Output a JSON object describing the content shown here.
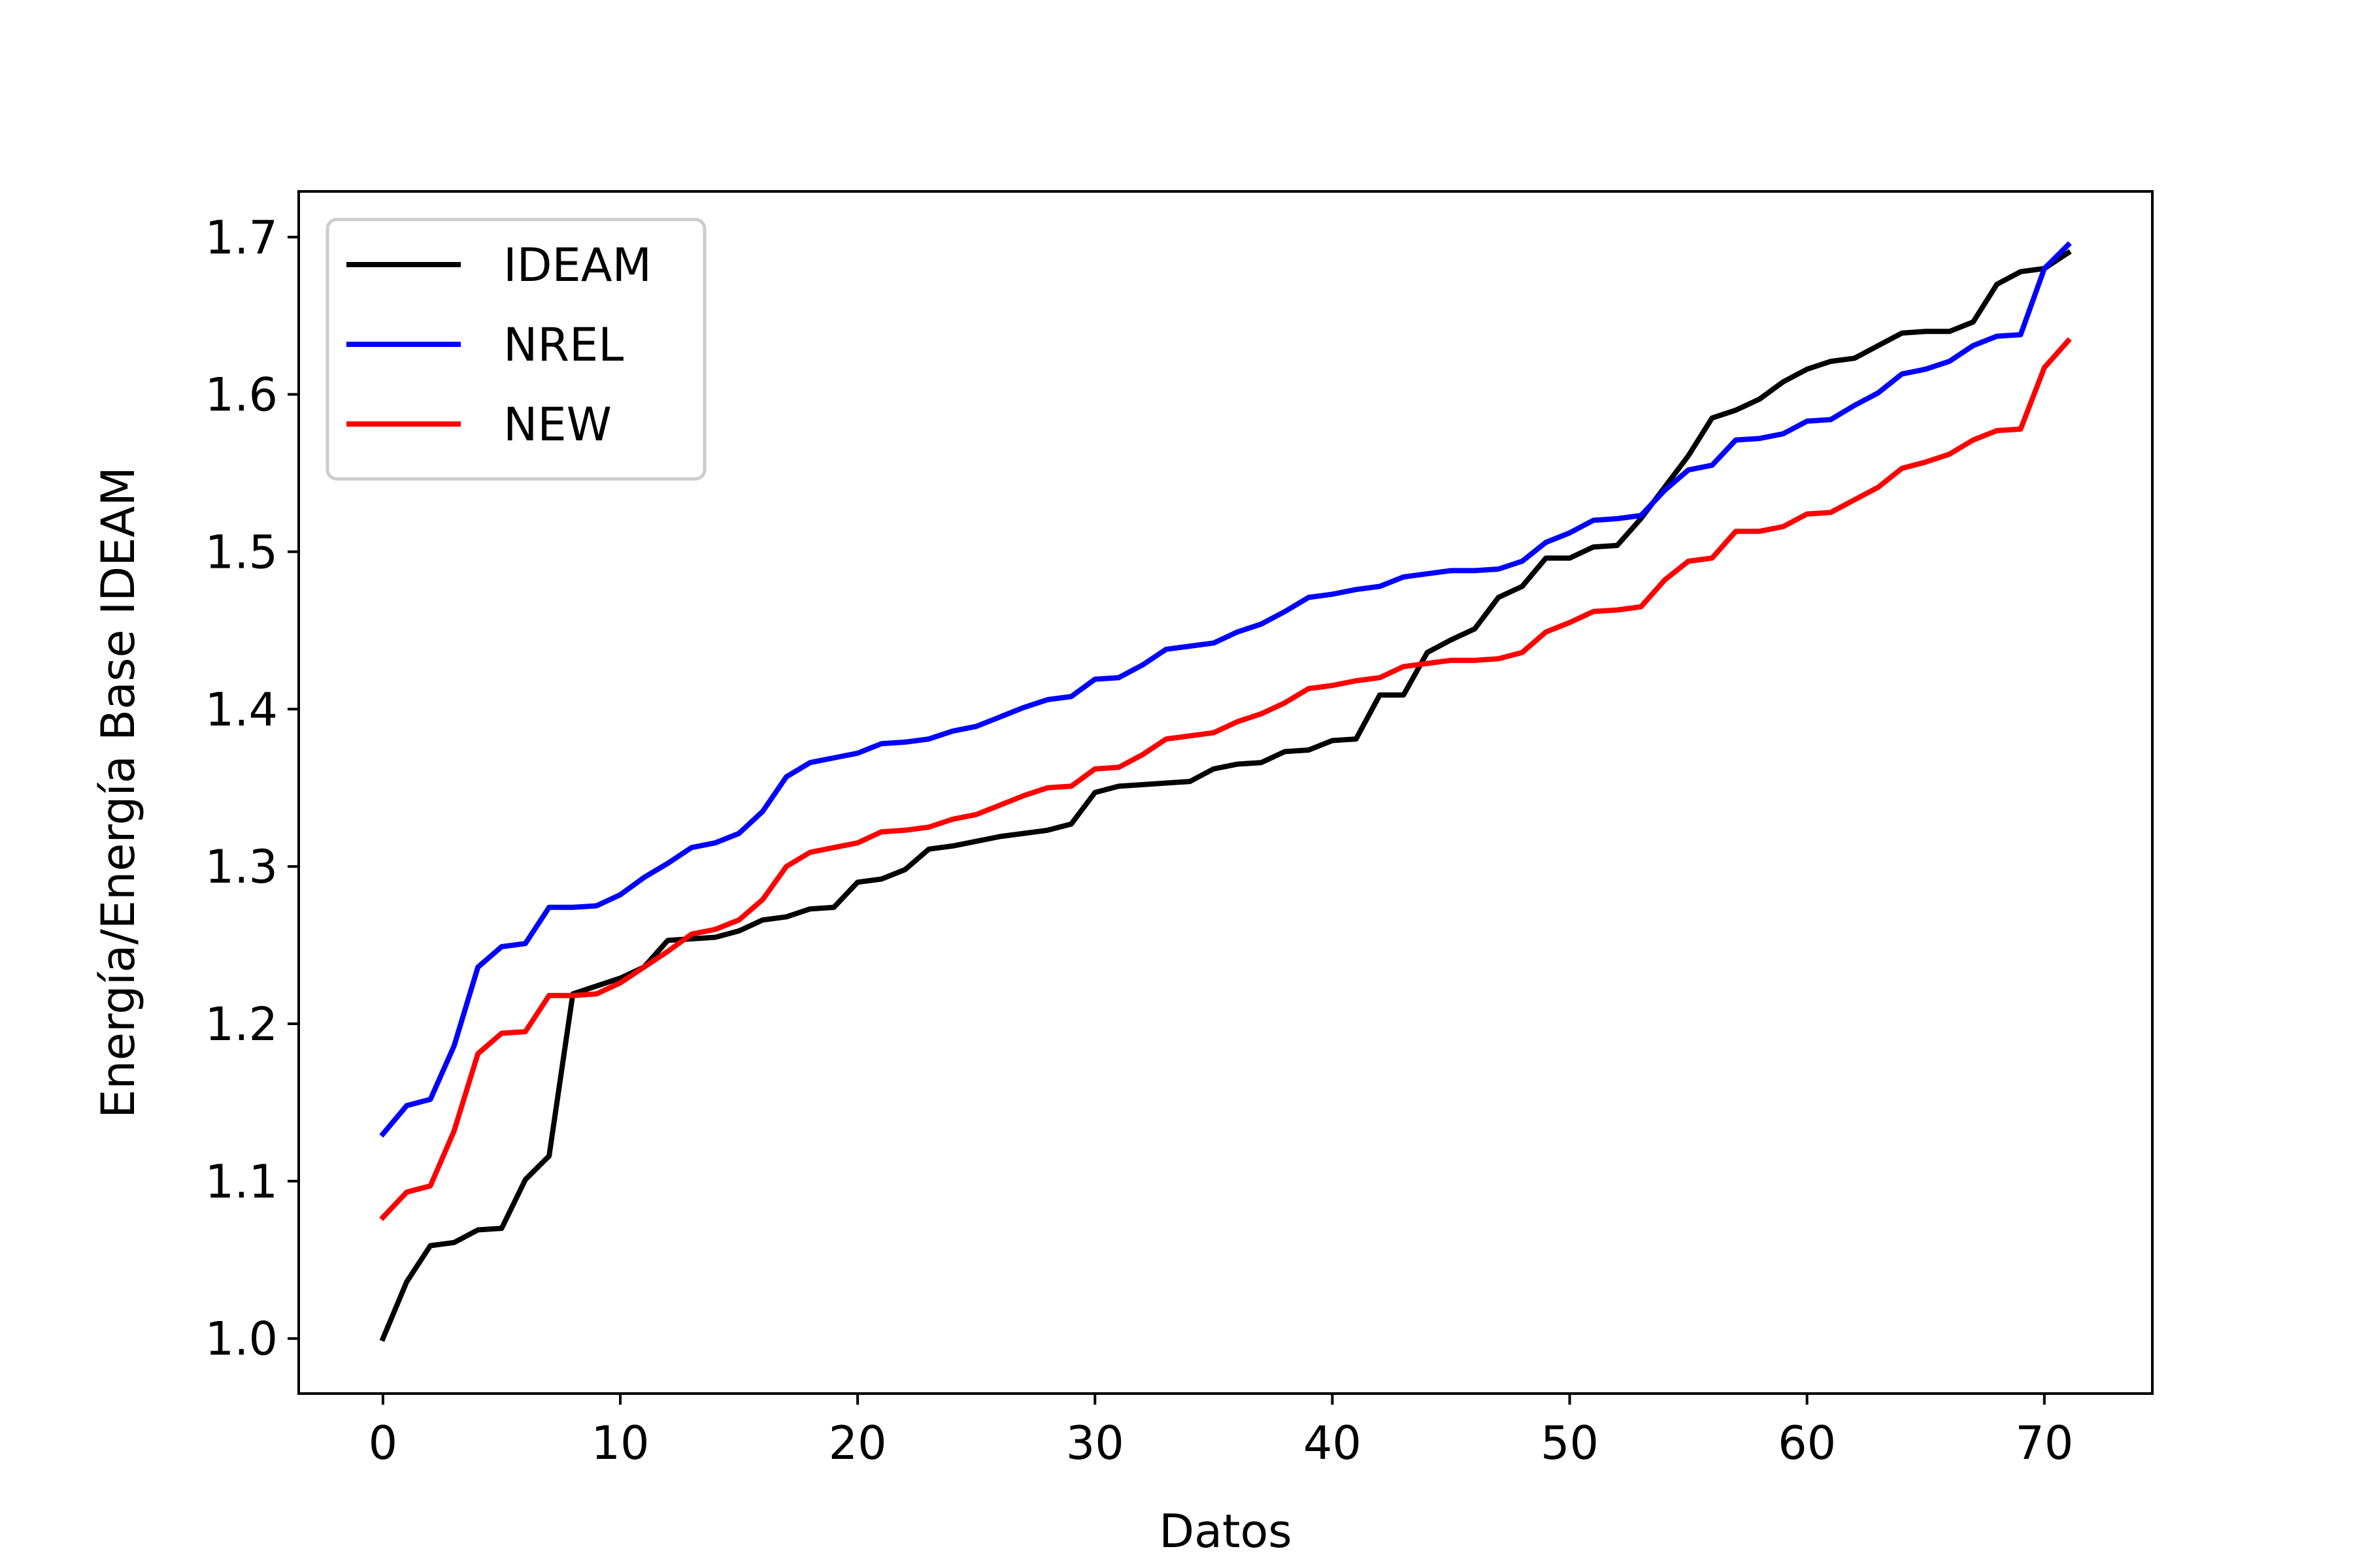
{
  "chart_data": {
    "type": "line",
    "title": "",
    "xlabel": "Datos",
    "ylabel": "Energía/Energía Base IDEAM",
    "xlim": [
      -3.55,
      74.55
    ],
    "ylim": [
      0.965,
      1.729
    ],
    "xticks": [
      0,
      10,
      20,
      30,
      40,
      50,
      60,
      70
    ],
    "yticks": [
      1.0,
      1.1,
      1.2,
      1.3,
      1.4,
      1.5,
      1.6,
      1.7
    ],
    "xtick_labels": [
      "0",
      "10",
      "20",
      "30",
      "40",
      "50",
      "60",
      "70"
    ],
    "ytick_labels": [
      "1.0",
      "1.1",
      "1.2",
      "1.3",
      "1.4",
      "1.5",
      "1.6",
      "1.7"
    ],
    "grid": false,
    "legend_position": "top-left",
    "series": [
      {
        "name": "IDEAM",
        "color": "#000000",
        "x": [
          0,
          1,
          2,
          3,
          4,
          5,
          6,
          7,
          8,
          9,
          10,
          11,
          12,
          13,
          14,
          15,
          16,
          17,
          18,
          19,
          20,
          21,
          22,
          23,
          24,
          25,
          26,
          27,
          28,
          29,
          30,
          31,
          32,
          33,
          34,
          35,
          36,
          37,
          38,
          39,
          40,
          41,
          42,
          43,
          44,
          45,
          46,
          47,
          48,
          49,
          50,
          51,
          52,
          53,
          54,
          55,
          56,
          57,
          58,
          59,
          60,
          61,
          62,
          63,
          64,
          65,
          66,
          67,
          68,
          69,
          70,
          71
        ],
        "values": [
          1.0,
          1.036,
          1.059,
          1.061,
          1.069,
          1.07,
          1.101,
          1.116,
          1.219,
          1.224,
          1.229,
          1.236,
          1.253,
          1.254,
          1.255,
          1.259,
          1.266,
          1.268,
          1.273,
          1.274,
          1.29,
          1.292,
          1.298,
          1.311,
          1.313,
          1.316,
          1.319,
          1.321,
          1.323,
          1.327,
          1.347,
          1.351,
          1.352,
          1.353,
          1.354,
          1.362,
          1.365,
          1.366,
          1.373,
          1.374,
          1.38,
          1.381,
          1.409,
          1.409,
          1.436,
          1.444,
          1.451,
          1.471,
          1.478,
          1.496,
          1.496,
          1.503,
          1.504,
          1.521,
          1.541,
          1.561,
          1.585,
          1.59,
          1.597,
          1.608,
          1.616,
          1.621,
          1.623,
          1.631,
          1.639,
          1.64,
          1.64,
          1.646,
          1.67,
          1.678,
          1.68,
          1.69
        ]
      },
      {
        "name": "NREL",
        "color": "#0000ff",
        "x": [
          0,
          1,
          2,
          3,
          4,
          5,
          6,
          7,
          8,
          9,
          10,
          11,
          12,
          13,
          14,
          15,
          16,
          17,
          18,
          19,
          20,
          21,
          22,
          23,
          24,
          25,
          26,
          27,
          28,
          29,
          30,
          31,
          32,
          33,
          34,
          35,
          36,
          37,
          38,
          39,
          40,
          41,
          42,
          43,
          44,
          45,
          46,
          47,
          48,
          49,
          50,
          51,
          52,
          53,
          54,
          55,
          56,
          57,
          58,
          59,
          60,
          61,
          62,
          63,
          64,
          65,
          66,
          67,
          68,
          69,
          70,
          71
        ],
        "values": [
          1.13,
          1.148,
          1.152,
          1.186,
          1.236,
          1.249,
          1.251,
          1.274,
          1.274,
          1.275,
          1.282,
          1.293,
          1.302,
          1.312,
          1.315,
          1.321,
          1.335,
          1.357,
          1.366,
          1.369,
          1.372,
          1.378,
          1.379,
          1.381,
          1.386,
          1.389,
          1.395,
          1.401,
          1.406,
          1.408,
          1.419,
          1.42,
          1.428,
          1.438,
          1.44,
          1.442,
          1.449,
          1.454,
          1.462,
          1.471,
          1.473,
          1.476,
          1.478,
          1.484,
          1.486,
          1.488,
          1.488,
          1.489,
          1.494,
          1.506,
          1.512,
          1.52,
          1.521,
          1.523,
          1.539,
          1.552,
          1.555,
          1.571,
          1.572,
          1.575,
          1.583,
          1.584,
          1.593,
          1.601,
          1.613,
          1.616,
          1.621,
          1.631,
          1.637,
          1.638,
          1.68,
          1.695
        ]
      },
      {
        "name": "NEW",
        "color": "#ff0000",
        "x": [
          0,
          1,
          2,
          3,
          4,
          5,
          6,
          7,
          8,
          9,
          10,
          11,
          12,
          13,
          14,
          15,
          16,
          17,
          18,
          19,
          20,
          21,
          22,
          23,
          24,
          25,
          26,
          27,
          28,
          29,
          30,
          31,
          32,
          33,
          34,
          35,
          36,
          37,
          38,
          39,
          40,
          41,
          42,
          43,
          44,
          45,
          46,
          47,
          48,
          49,
          50,
          51,
          52,
          53,
          54,
          55,
          56,
          57,
          58,
          59,
          60,
          61,
          62,
          63,
          64,
          65,
          66,
          67,
          68,
          69,
          70,
          71
        ],
        "values": [
          1.077,
          1.093,
          1.097,
          1.132,
          1.181,
          1.194,
          1.195,
          1.218,
          1.218,
          1.219,
          1.226,
          1.236,
          1.246,
          1.257,
          1.26,
          1.266,
          1.279,
          1.3,
          1.309,
          1.312,
          1.315,
          1.322,
          1.323,
          1.325,
          1.33,
          1.333,
          1.339,
          1.345,
          1.35,
          1.351,
          1.362,
          1.363,
          1.371,
          1.381,
          1.383,
          1.385,
          1.392,
          1.397,
          1.404,
          1.413,
          1.415,
          1.418,
          1.42,
          1.427,
          1.429,
          1.431,
          1.431,
          1.432,
          1.436,
          1.449,
          1.455,
          1.462,
          1.463,
          1.465,
          1.482,
          1.494,
          1.496,
          1.513,
          1.513,
          1.516,
          1.524,
          1.525,
          1.533,
          1.541,
          1.553,
          1.557,
          1.562,
          1.571,
          1.577,
          1.578,
          1.617,
          1.634
        ]
      }
    ]
  }
}
